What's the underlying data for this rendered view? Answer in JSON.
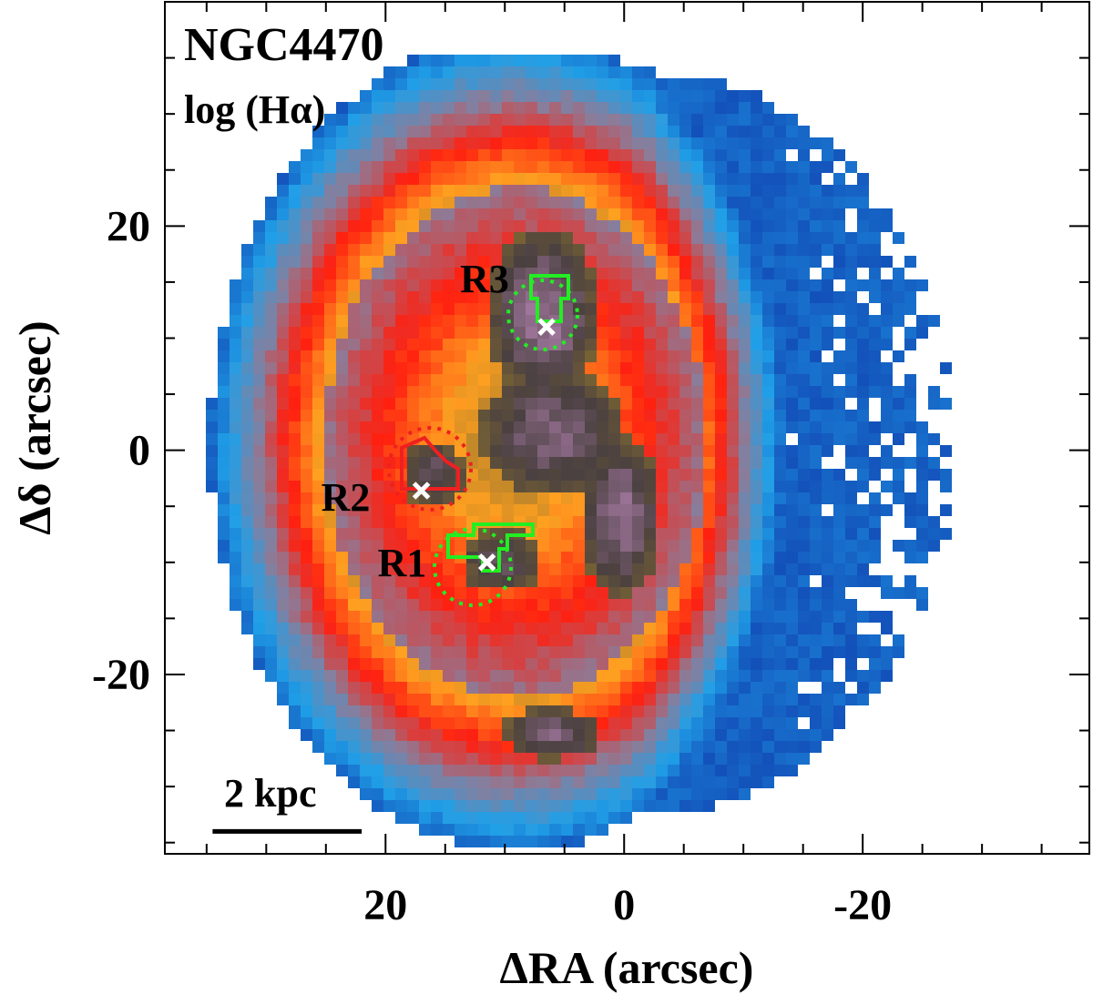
{
  "chart_data": {
    "type": "heatmap",
    "title": "NGC4470",
    "subtitle": "log (Hα)",
    "xlabel": "ΔRA (arcsec)",
    "ylabel": "Δδ (arcsec)",
    "xlim": [
      38.5,
      -39
    ],
    "ylim": [
      -36,
      40
    ],
    "x_inverted": true,
    "x_ticks": [
      {
        "value": 20,
        "label": "20"
      },
      {
        "value": 0,
        "label": "0"
      },
      {
        "value": -20,
        "label": "-20"
      }
    ],
    "y_ticks": [
      {
        "value": 20,
        "label": "20"
      },
      {
        "value": 0,
        "label": "0"
      },
      {
        "value": -20,
        "label": "-20"
      }
    ],
    "minor_tick_step": 5,
    "grid": false,
    "colormap": [
      "#1040b0",
      "#20a0e8",
      "#8a7d9a",
      "#ff2010",
      "#ffa020",
      "#8a7030",
      "#4a4040",
      "#c890c8"
    ],
    "title_color": "#ff4a10",
    "scale_bar": {
      "label": "2 kpc",
      "x_start": 34.5,
      "x_end": 22,
      "y": -34
    },
    "regions": [
      {
        "name": "R1",
        "label": "R1",
        "x": 11.5,
        "y": -10,
        "color": "#22ee22"
      },
      {
        "name": "R2",
        "label": "R2",
        "x": 17,
        "y": -3.6,
        "color": "#ee2020"
      },
      {
        "name": "R3",
        "label": "R3",
        "x": 6.5,
        "y": 11,
        "color": "#22ee22"
      }
    ]
  }
}
